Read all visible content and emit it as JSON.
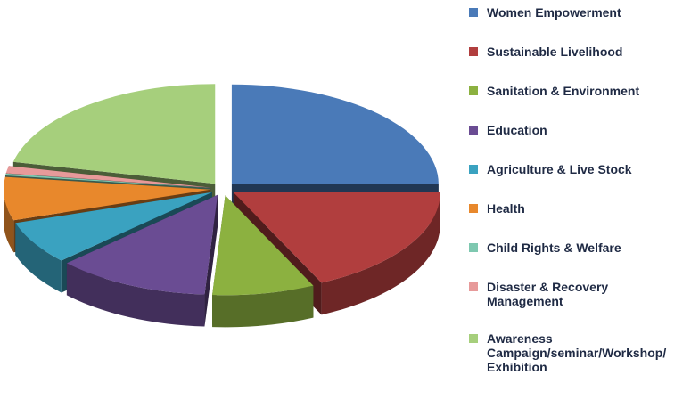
{
  "chart_data": {
    "type": "pie",
    "style": "3d-exploded",
    "title": "",
    "legend_position": "right",
    "series": [
      {
        "name": "Women Empowerment",
        "value": 25,
        "color": "#4a7ab8"
      },
      {
        "name": "Sustainable Livelihood",
        "value": 18,
        "color": "#b13e3e"
      },
      {
        "name": "Sanitation & Environment",
        "value": 8,
        "color": "#8cb140"
      },
      {
        "name": "Education",
        "value": 12,
        "color": "#6a4c93"
      },
      {
        "name": "Agriculture & Live Stock",
        "value": 7,
        "color": "#3aa2c0"
      },
      {
        "name": "Health",
        "value": 7,
        "color": "#e8882c"
      },
      {
        "name": "Child Rights & Welfare",
        "value": 0.3,
        "color": "#7ec8b0"
      },
      {
        "name": "Disaster & Recovery\nManagement",
        "value": 1.2,
        "color": "#e79a9a"
      },
      {
        "name": "Awareness\nCampaign/seminar/Workshop/\nExhibition",
        "value": 21.5,
        "color": "#a6cf7c"
      }
    ]
  }
}
